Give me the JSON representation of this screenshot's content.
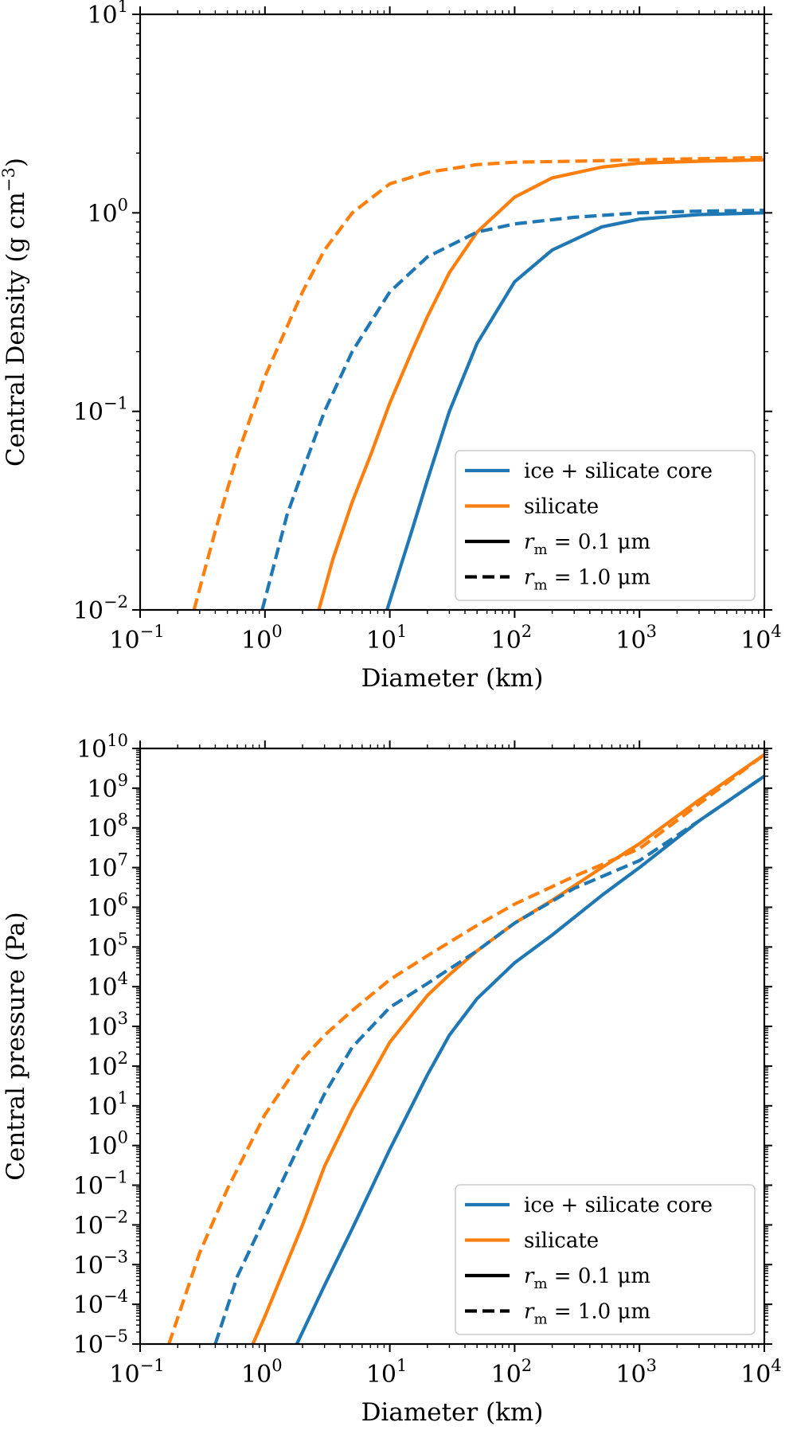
{
  "colors": {
    "blue": "#1f77b4",
    "orange": "#ff7f0e",
    "axis": "#000000",
    "legend_border": "#cccccc"
  },
  "chart_data": [
    {
      "type": "line",
      "xscale": "log",
      "yscale": "log",
      "xlabel": "Diameter (km)",
      "ylabel": "Central Density (g cm",
      "ylabel_sup": "−3",
      "ylabel_close": ")",
      "xlim": [
        0.1,
        10000
      ],
      "ylim": [
        0.01,
        10
      ],
      "xticks": [
        {
          "b": "10",
          "e": "−1"
        },
        {
          "b": "10",
          "e": "0"
        },
        {
          "b": "10",
          "e": "1"
        },
        {
          "b": "10",
          "e": "2"
        },
        {
          "b": "10",
          "e": "3"
        },
        {
          "b": "10",
          "e": "4"
        }
      ],
      "yticks": [
        {
          "b": "10",
          "e": "−2"
        },
        {
          "b": "10",
          "e": "−1"
        },
        {
          "b": "10",
          "e": "0"
        },
        {
          "b": "10",
          "e": "1"
        }
      ],
      "legend": {
        "position": "lower-right",
        "entries": [
          {
            "label": "ice + silicate core",
            "color": "blue",
            "style": "solid"
          },
          {
            "label": "silicate",
            "color": "orange",
            "style": "solid"
          },
          {
            "label_var": "r",
            "label_sub": "m",
            "label_rest": " = 0.1 μm",
            "color": "axis",
            "style": "solid"
          },
          {
            "label_var": "r",
            "label_sub": "m",
            "label_rest": " = 1.0 μm",
            "color": "axis",
            "style": "dashed"
          }
        ]
      },
      "series": [
        {
          "name": "ice + silicate core, r_m = 0.1 μm",
          "color": "blue",
          "style": "solid",
          "x": [
            9.5,
            12,
            15,
            20,
            30,
            50,
            100,
            200,
            500,
            1000,
            3000,
            10000
          ],
          "y": [
            0.01,
            0.016,
            0.025,
            0.045,
            0.1,
            0.22,
            0.45,
            0.65,
            0.85,
            0.93,
            0.98,
            1.0
          ]
        },
        {
          "name": "silicate, r_m = 0.1 μm",
          "color": "orange",
          "style": "solid",
          "x": [
            2.7,
            3.5,
            5,
            7,
            10,
            15,
            20,
            30,
            50,
            100,
            200,
            500,
            1000,
            3000,
            10000
          ],
          "y": [
            0.01,
            0.018,
            0.035,
            0.06,
            0.11,
            0.2,
            0.3,
            0.5,
            0.8,
            1.2,
            1.5,
            1.7,
            1.78,
            1.82,
            1.85
          ]
        },
        {
          "name": "ice + silicate core, r_m = 1.0 μm",
          "color": "blue",
          "style": "dashed",
          "x": [
            0.95,
            1.5,
            2,
            3,
            5,
            10,
            20,
            50,
            100,
            300,
            1000,
            3000,
            10000
          ],
          "y": [
            0.01,
            0.03,
            0.05,
            0.1,
            0.2,
            0.4,
            0.6,
            0.8,
            0.88,
            0.95,
            1.0,
            1.02,
            1.03
          ]
        },
        {
          "name": "silicate, r_m = 1.0 μm",
          "color": "orange",
          "style": "dashed",
          "x": [
            0.27,
            0.4,
            0.6,
            1,
            2,
            3,
            5,
            10,
            20,
            50,
            100,
            300,
            1000,
            10000
          ],
          "y": [
            0.01,
            0.025,
            0.06,
            0.15,
            0.4,
            0.65,
            1.0,
            1.4,
            1.6,
            1.75,
            1.8,
            1.82,
            1.85,
            1.9
          ]
        }
      ]
    },
    {
      "type": "line",
      "xscale": "log",
      "yscale": "log",
      "xlabel": "Diameter (km)",
      "ylabel": "Central pressure (Pa)",
      "xlim": [
        0.1,
        10000
      ],
      "ylim": [
        1e-05,
        10000000000.0
      ],
      "xticks": [
        {
          "b": "10",
          "e": "−1"
        },
        {
          "b": "10",
          "e": "0"
        },
        {
          "b": "10",
          "e": "1"
        },
        {
          "b": "10",
          "e": "2"
        },
        {
          "b": "10",
          "e": "3"
        },
        {
          "b": "10",
          "e": "4"
        }
      ],
      "yticks": [
        {
          "b": "10",
          "e": "−5"
        },
        {
          "b": "10",
          "e": "−4"
        },
        {
          "b": "10",
          "e": "−3"
        },
        {
          "b": "10",
          "e": "−2"
        },
        {
          "b": "10",
          "e": "−1"
        },
        {
          "b": "10",
          "e": "0"
        },
        {
          "b": "10",
          "e": "1"
        },
        {
          "b": "10",
          "e": "2"
        },
        {
          "b": "10",
          "e": "3"
        },
        {
          "b": "10",
          "e": "4"
        },
        {
          "b": "10",
          "e": "5"
        },
        {
          "b": "10",
          "e": "6"
        },
        {
          "b": "10",
          "e": "7"
        },
        {
          "b": "10",
          "e": "8"
        },
        {
          "b": "10",
          "e": "9"
        },
        {
          "b": "10",
          "e": "10"
        }
      ],
      "legend": {
        "position": "lower-right",
        "entries": [
          {
            "label": "ice + silicate core",
            "color": "blue",
            "style": "solid"
          },
          {
            "label": "silicate",
            "color": "orange",
            "style": "solid"
          },
          {
            "label_var": "r",
            "label_sub": "m",
            "label_rest": " = 0.1 μm",
            "color": "axis",
            "style": "solid"
          },
          {
            "label_var": "r",
            "label_sub": "m",
            "label_rest": " = 1.0 μm",
            "color": "axis",
            "style": "dashed"
          }
        ]
      },
      "series": [
        {
          "name": "ice + silicate core, r_m = 0.1 μm",
          "color": "blue",
          "style": "solid",
          "x": [
            1.8,
            3,
            5,
            10,
            20,
            30,
            50,
            100,
            200,
            500,
            1000,
            3000,
            10000
          ],
          "y": [
            1e-05,
            0.0003,
            0.008,
            0.8,
            60,
            600,
            5000,
            40000,
            200000,
            2000000,
            10000000,
            150000000,
            2000000000
          ]
        },
        {
          "name": "silicate, r_m = 0.1 μm",
          "color": "orange",
          "style": "solid",
          "x": [
            0.8,
            1,
            2,
            3,
            5,
            10,
            20,
            30,
            50,
            100,
            200,
            500,
            1000,
            3000,
            10000
          ],
          "y": [
            1e-05,
            5e-05,
            0.01,
            0.3,
            8,
            400,
            6000,
            20000,
            80000,
            400000,
            1500000,
            10000000,
            40000000,
            500000000,
            7000000000
          ]
        },
        {
          "name": "ice + silicate core, r_m = 1.0 μm",
          "color": "blue",
          "style": "dashed",
          "x": [
            0.4,
            0.6,
            1,
            2,
            3,
            5,
            10,
            20,
            50,
            100,
            300,
            1000,
            3000,
            10000
          ],
          "y": [
            1e-05,
            0.0005,
            0.015,
            1.5,
            20,
            300,
            3000,
            12000,
            80000,
            400000,
            3000000,
            15000000,
            150000000,
            2000000000
          ]
        },
        {
          "name": "silicate, r_m = 1.0 μm",
          "color": "orange",
          "style": "dashed",
          "x": [
            0.17,
            0.3,
            0.5,
            1,
            2,
            3,
            5,
            10,
            20,
            50,
            100,
            300,
            1000,
            3000,
            10000
          ],
          "y": [
            1e-05,
            0.002,
            0.08,
            6,
            150,
            600,
            2500,
            15000,
            60000,
            350000,
            1200000,
            6000000,
            30000000,
            400000000,
            7000000000
          ]
        }
      ]
    }
  ]
}
